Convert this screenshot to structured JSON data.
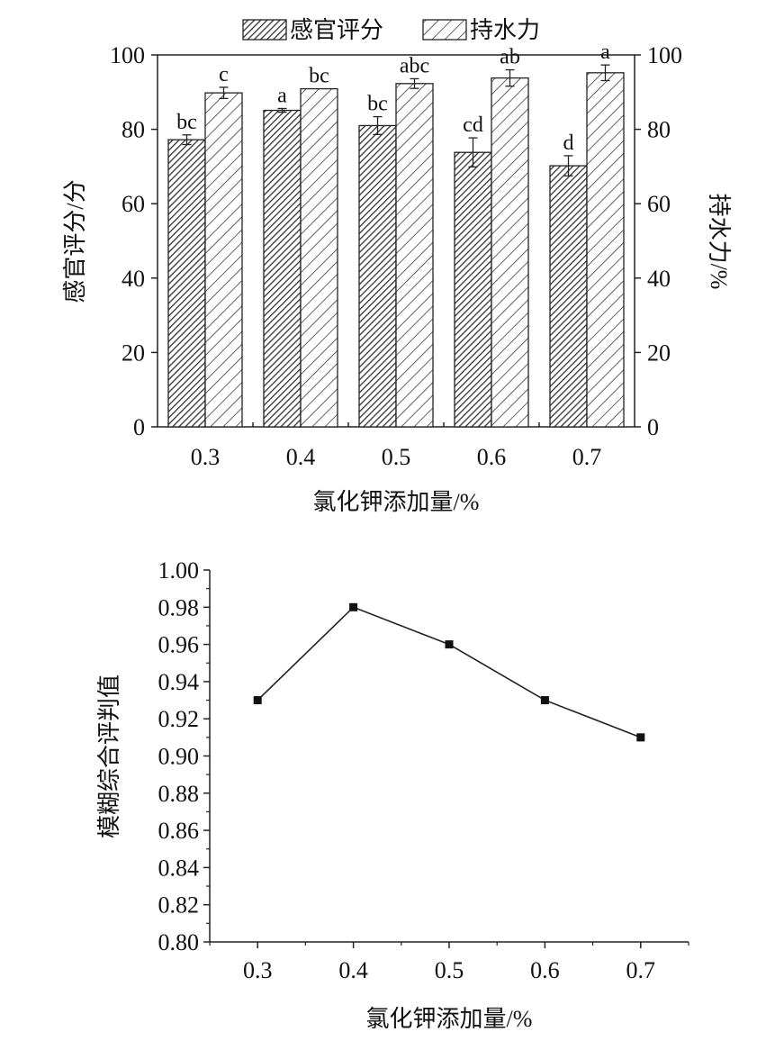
{
  "chart_data": [
    {
      "type": "bar",
      "categories": [
        "0.3",
        "0.4",
        "0.5",
        "0.6",
        "0.7"
      ],
      "xlabel": "氯化钾添加量/%",
      "ylabel": "感官评分/分",
      "ylabel_right": "持水力/%",
      "ylim": [
        0,
        100
      ],
      "yticks": [
        "0",
        "20",
        "40",
        "60",
        "80",
        "100"
      ],
      "legend_position": "top",
      "grid": false,
      "series": [
        {
          "name": "感官评分",
          "axis": "left",
          "values": [
            77.2,
            85.1,
            81.0,
            73.8,
            70.2
          ],
          "errors": [
            1.3,
            0.5,
            2.4,
            3.9,
            2.7
          ],
          "labels": [
            "bc",
            "a",
            "bc",
            "cd",
            "d"
          ],
          "pattern": "dense-hatch"
        },
        {
          "name": "持水力",
          "axis": "right",
          "values": [
            89.8,
            90.9,
            92.3,
            93.8,
            95.2
          ],
          "errors": [
            1.5,
            0,
            1.3,
            2.2,
            2.1
          ],
          "labels": [
            "c",
            "bc",
            "abc",
            "ab",
            "a"
          ],
          "pattern": "sparse-hatch"
        }
      ]
    },
    {
      "type": "line",
      "x": [
        0.3,
        0.4,
        0.5,
        0.6,
        0.7
      ],
      "xticks": [
        "0.3",
        "0.4",
        "0.5",
        "0.6",
        "0.7"
      ],
      "xlim": [
        0.25,
        0.75
      ],
      "y": [
        0.93,
        0.98,
        0.96,
        0.93,
        0.91
      ],
      "ylim": [
        0.8,
        1.0
      ],
      "yticks": [
        "0.80",
        "0.82",
        "0.84",
        "0.86",
        "0.88",
        "0.90",
        "0.92",
        "0.94",
        "0.96",
        "0.98",
        "1.00"
      ],
      "xlabel": "氯化钾添加量/%",
      "ylabel": "模糊综合评判值",
      "marker": "square",
      "grid": false
    }
  ]
}
